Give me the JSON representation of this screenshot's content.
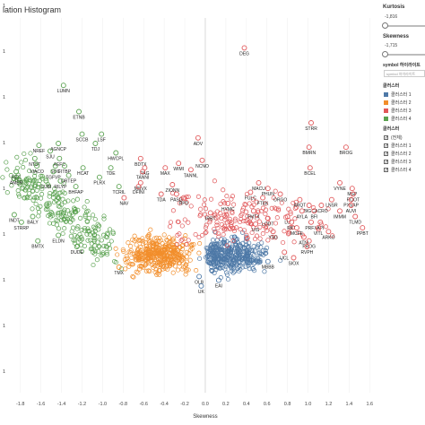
{
  "page_title": "lation Histogram",
  "controls": {
    "kurtosis": {
      "label": "Kurtosis",
      "value": "-1,816"
    },
    "skewness": {
      "label": "Skewness",
      "value": "-1,715"
    },
    "symbol_highlight": {
      "label": "symbol 하이라이트",
      "placeholder": "symbol 하이라이트"
    },
    "cluster_legend": {
      "label": "클러스터",
      "items": [
        {
          "label": "클러스터 1",
          "color": "#4e79a7"
        },
        {
          "label": "클러스터 2",
          "color": "#f28e2b"
        },
        {
          "label": "클러스터 3",
          "color": "#e15759"
        },
        {
          "label": "클러스터 4",
          "color": "#59a14f"
        }
      ]
    },
    "cluster_filter": {
      "label": "클러스터",
      "items": [
        {
          "label": "(전체)",
          "checked": true
        },
        {
          "label": "클러스터 1",
          "checked": true
        },
        {
          "label": "클러스터 2",
          "checked": true
        },
        {
          "label": "클러스터 3",
          "checked": true
        },
        {
          "label": "클러스터 4",
          "checked": true
        }
      ]
    }
  },
  "chart_data": {
    "type": "scatter",
    "title": "",
    "xlabel": "Skewness",
    "ylabel": "",
    "xlim": [
      -1.85,
      1.65
    ],
    "x_ticks": [
      "-1.8",
      "-1.6",
      "-1.4",
      "-1.2",
      "-1.0",
      "-0.8",
      "-0.6",
      "-0.4",
      "-0.2",
      "0.0",
      "0.2",
      "0.4",
      "0.6",
      "0.8",
      "1.0",
      "1.2",
      "1.4",
      "1.6"
    ],
    "y_ticks": [
      "1",
      "1",
      "1",
      "1",
      "1",
      "1",
      "1",
      "1",
      "1"
    ],
    "marker": "open-circle",
    "clusters": [
      {
        "name": "클러스터 1",
        "color": "#4e79a7"
      },
      {
        "name": "클러스터 2",
        "color": "#f28e2b"
      },
      {
        "name": "클러스터 3",
        "color": "#e15759"
      },
      {
        "name": "클러스터 4",
        "color": "#59a14f"
      }
    ],
    "labeled_points": [
      {
        "label": "DEG",
        "x": 0.38,
        "y": 0.92,
        "cluster": 3
      },
      {
        "label": "LUMN",
        "x": -1.38,
        "y": 0.82,
        "cluster": 4
      },
      {
        "label": "ETNB",
        "x": -1.23,
        "y": 0.75,
        "cluster": 4
      },
      {
        "label": "STRR",
        "x": 1.03,
        "y": 0.72,
        "cluster": 3
      },
      {
        "label": "SCCB",
        "x": -1.2,
        "y": 0.69,
        "cluster": 4
      },
      {
        "label": "LSF",
        "x": -1.01,
        "y": 0.69,
        "cluster": 4
      },
      {
        "label": "TDJ",
        "x": -1.07,
        "y": 0.665,
        "cluster": 4
      },
      {
        "label": "ADV",
        "x": -0.07,
        "y": 0.68,
        "cluster": 3
      },
      {
        "label": "NREF",
        "x": -1.62,
        "y": 0.66,
        "cluster": 4
      },
      {
        "label": "AGNCP",
        "x": -1.43,
        "y": 0.665,
        "cluster": 4
      },
      {
        "label": "SJU",
        "x": -1.51,
        "y": 0.645,
        "cluster": 4
      },
      {
        "label": "BMRN",
        "x": 1.01,
        "y": 0.655,
        "cluster": 3
      },
      {
        "label": "BROG",
        "x": 1.37,
        "y": 0.655,
        "cluster": 3
      },
      {
        "label": "HWCPL",
        "x": -0.87,
        "y": 0.64,
        "cluster": 4
      },
      {
        "label": "NTST",
        "x": -1.66,
        "y": 0.625,
        "cluster": 4
      },
      {
        "label": "AEFC",
        "x": -1.42,
        "y": 0.625,
        "cluster": 4
      },
      {
        "label": "BDTX",
        "x": -0.63,
        "y": 0.625,
        "cluster": 3
      },
      {
        "label": "NCNO",
        "x": -0.03,
        "y": 0.62,
        "cluster": 3
      },
      {
        "label": "WIMI",
        "x": -0.26,
        "y": 0.612,
        "cluster": 3
      },
      {
        "label": "VIACO",
        "x": -1.64,
        "y": 0.605,
        "cluster": 4
      },
      {
        "label": "SOC",
        "x": -1.46,
        "y": 0.605,
        "cluster": 4
      },
      {
        "label": "FITBP",
        "x": -1.37,
        "y": 0.605,
        "cluster": 4
      },
      {
        "label": "HCAT",
        "x": -1.19,
        "y": 0.6,
        "cluster": 4
      },
      {
        "label": "TDE",
        "x": -0.92,
        "y": 0.6,
        "cluster": 4
      },
      {
        "label": "PAG",
        "x": -0.59,
        "y": 0.6,
        "cluster": 3
      },
      {
        "label": "MAX",
        "x": -0.39,
        "y": 0.6,
        "cluster": 3
      },
      {
        "label": "TANNL",
        "x": -0.14,
        "y": 0.595,
        "cluster": 3
      },
      {
        "label": "BCEL",
        "x": 1.02,
        "y": 0.6,
        "cluster": 3
      },
      {
        "label": "REC",
        "x": -1.84,
        "y": 0.59,
        "cluster": 4
      },
      {
        "label": "TGFVP",
        "x": -1.48,
        "y": 0.59,
        "cluster": 4
      },
      {
        "label": "TANNI",
        "x": -0.61,
        "y": 0.59,
        "cluster": 3
      },
      {
        "label": "AMER",
        "x": -1.84,
        "y": 0.575,
        "cluster": 4
      },
      {
        "label": "QRTEP",
        "x": -1.33,
        "y": 0.58,
        "cluster": 4
      },
      {
        "label": "PLRX",
        "x": -1.03,
        "y": 0.575,
        "cluster": 4
      },
      {
        "label": "CUBI",
        "x": -1.55,
        "y": 0.565,
        "cluster": 4
      },
      {
        "label": "RILYP",
        "x": -1.41,
        "y": 0.565,
        "cluster": 4
      },
      {
        "label": "MSVX",
        "x": -0.63,
        "y": 0.56,
        "cluster": 3
      },
      {
        "label": "ZIONN",
        "x": -0.32,
        "y": 0.555,
        "cluster": 3
      },
      {
        "label": "MACU",
        "x": 0.52,
        "y": 0.56,
        "cluster": 3
      },
      {
        "label": "VYNE",
        "x": 1.31,
        "y": 0.56,
        "cluster": 3
      },
      {
        "label": "BHFAP",
        "x": -1.26,
        "y": 0.55,
        "cluster": 4
      },
      {
        "label": "TCRIL",
        "x": -0.84,
        "y": 0.55,
        "cluster": 4
      },
      {
        "label": "DFINI",
        "x": -0.65,
        "y": 0.55,
        "cluster": 3
      },
      {
        "label": "PHUN",
        "x": 0.61,
        "y": 0.545,
        "cluster": 3
      },
      {
        "label": "MSP",
        "x": 1.43,
        "y": 0.545,
        "cluster": 3
      },
      {
        "label": "FULC",
        "x": 0.44,
        "y": 0.535,
        "cluster": 3
      },
      {
        "label": "TDA",
        "x": -0.43,
        "y": 0.53,
        "cluster": 3
      },
      {
        "label": "PASG",
        "x": -0.28,
        "y": 0.53,
        "cluster": 3
      },
      {
        "label": "ORGO",
        "x": 0.73,
        "y": 0.53,
        "cluster": 3
      },
      {
        "label": "ROOT",
        "x": 1.44,
        "y": 0.53,
        "cluster": 3
      },
      {
        "label": "NAV",
        "x": -0.79,
        "y": 0.52,
        "cluster": 3
      },
      {
        "label": "RPD",
        "x": -0.21,
        "y": 0.52,
        "cluster": 3
      },
      {
        "label": "FTEK",
        "x": 0.56,
        "y": 0.52,
        "cluster": 3
      },
      {
        "label": "ARQT",
        "x": 0.92,
        "y": 0.515,
        "cluster": 3
      },
      {
        "label": "LNSR",
        "x": 1.23,
        "y": 0.515,
        "cluster": 3
      },
      {
        "label": "PXSAP",
        "x": 1.42,
        "y": 0.515,
        "cluster": 3
      },
      {
        "label": "HYMC",
        "x": 0.22,
        "y": 0.505,
        "cluster": 3
      },
      {
        "label": "BIGC",
        "x": 1.01,
        "y": 0.5,
        "cluster": 3
      },
      {
        "label": "ACRO",
        "x": 1.13,
        "y": 0.5,
        "cluster": 3
      },
      {
        "label": "AUVI",
        "x": 1.42,
        "y": 0.5,
        "cluster": 3
      },
      {
        "label": "INDT",
        "x": -1.86,
        "y": 0.475,
        "cluster": 4
      },
      {
        "label": "BALY",
        "x": -1.68,
        "y": 0.47,
        "cluster": 4
      },
      {
        "label": "FMTX",
        "x": 0.47,
        "y": 0.485,
        "cluster": 3
      },
      {
        "label": "IRBT",
        "x": 0.05,
        "y": 0.48,
        "cluster": 3
      },
      {
        "label": "AYLA",
        "x": 0.94,
        "y": 0.485,
        "cluster": 3
      },
      {
        "label": "BFI",
        "x": 1.06,
        "y": 0.485,
        "cluster": 3
      },
      {
        "label": "IMMM",
        "x": 1.31,
        "y": 0.485,
        "cluster": 3
      },
      {
        "label": "LU",
        "x": 0.8,
        "y": 0.47,
        "cluster": 3
      },
      {
        "label": "LODT",
        "x": 0.61,
        "y": 0.465,
        "cluster": 3
      },
      {
        "label": "TLMD",
        "x": 1.46,
        "y": 0.47,
        "cluster": 3
      },
      {
        "label": "STRRP",
        "x": -1.79,
        "y": 0.455,
        "cluster": 4
      },
      {
        "label": "PRFX",
        "x": 1.03,
        "y": 0.455,
        "cluster": 3
      },
      {
        "label": "API",
        "x": 1.12,
        "y": 0.455,
        "cluster": 3
      },
      {
        "label": "RKT",
        "x": 0.84,
        "y": 0.455,
        "cluster": 3
      },
      {
        "label": "UIS",
        "x": 0.49,
        "y": 0.45,
        "cluster": 3
      },
      {
        "label": "MCFE",
        "x": 0.89,
        "y": 0.44,
        "cluster": 3
      },
      {
        "label": "VITL",
        "x": 1.1,
        "y": 0.44,
        "cluster": 3
      },
      {
        "label": "PPBT",
        "x": 1.53,
        "y": 0.44,
        "cluster": 3
      },
      {
        "label": "YSG",
        "x": 0.66,
        "y": 0.43,
        "cluster": 3
      },
      {
        "label": "ARKO",
        "x": 1.2,
        "y": 0.43,
        "cluster": 3
      },
      {
        "label": "ELDN",
        "x": -1.43,
        "y": 0.42,
        "cluster": 4
      },
      {
        "label": "ATNI",
        "x": 0.96,
        "y": 0.415,
        "cluster": 3
      },
      {
        "label": "PROG",
        "x": 1.01,
        "y": 0.405,
        "cluster": 3
      },
      {
        "label": "BMTX",
        "x": -1.63,
        "y": 0.405,
        "cluster": 4
      },
      {
        "label": "DUDE",
        "x": -1.25,
        "y": 0.39,
        "cluster": 4
      },
      {
        "label": "RVPH",
        "x": 0.99,
        "y": 0.39,
        "cluster": 3
      },
      {
        "label": "UCL",
        "x": 0.77,
        "y": 0.375,
        "cluster": 3
      },
      {
        "label": "SIOX",
        "x": 0.86,
        "y": 0.36,
        "cluster": 3
      },
      {
        "label": "MBBB",
        "x": 0.61,
        "y": 0.35,
        "cluster": 1
      },
      {
        "label": "TMX",
        "x": -0.84,
        "y": 0.335,
        "cluster": 2
      },
      {
        "label": "OLB",
        "x": -0.06,
        "y": 0.31,
        "cluster": 1
      },
      {
        "label": "EAI",
        "x": 0.13,
        "y": 0.3,
        "cluster": 1
      },
      {
        "label": "UK",
        "x": -0.04,
        "y": 0.285,
        "cluster": 1
      }
    ]
  }
}
